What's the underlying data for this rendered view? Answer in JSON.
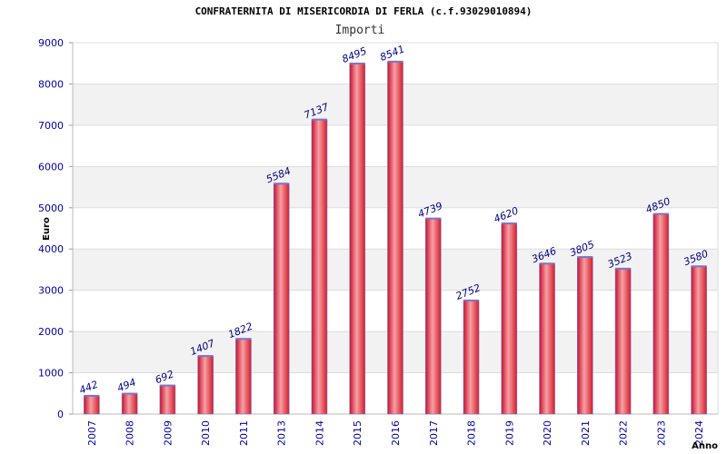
{
  "chart_data": {
    "type": "bar",
    "title": "CONFRATERNITA DI MISERICORDIA DI FERLA (c.f.93029010894)",
    "subtitle": "Importi",
    "xlabel": "Anno",
    "ylabel": "Euro",
    "categories": [
      "2007",
      "2008",
      "2009",
      "2010",
      "2011",
      "2013",
      "2014",
      "2015",
      "2016",
      "2017",
      "2018",
      "2019",
      "2020",
      "2021",
      "2022",
      "2023",
      "2024"
    ],
    "values": [
      442,
      494,
      692,
      1407,
      1822,
      5584,
      7137,
      8495,
      8541,
      4739,
      2752,
      4620,
      3646,
      3805,
      3523,
      4850,
      3580
    ],
    "data_labels": [
      "442",
      "494",
      "692",
      "1407",
      "1822",
      "5584",
      "7137",
      "8495",
      "8541",
      "4739",
      "2752",
      "4620",
      "3646",
      "3805",
      "3523",
      "4850",
      "3580"
    ],
    "ylim": [
      0,
      9000
    ],
    "yticks": [
      0,
      1000,
      2000,
      3000,
      4000,
      5000,
      6000,
      7000,
      8000,
      9000
    ],
    "grid": true,
    "bar_color": "#e8323c",
    "bar_highlight": "#f7a0a4",
    "bar_edge": "#7a73c9",
    "band_color": "#f2f2f2"
  }
}
